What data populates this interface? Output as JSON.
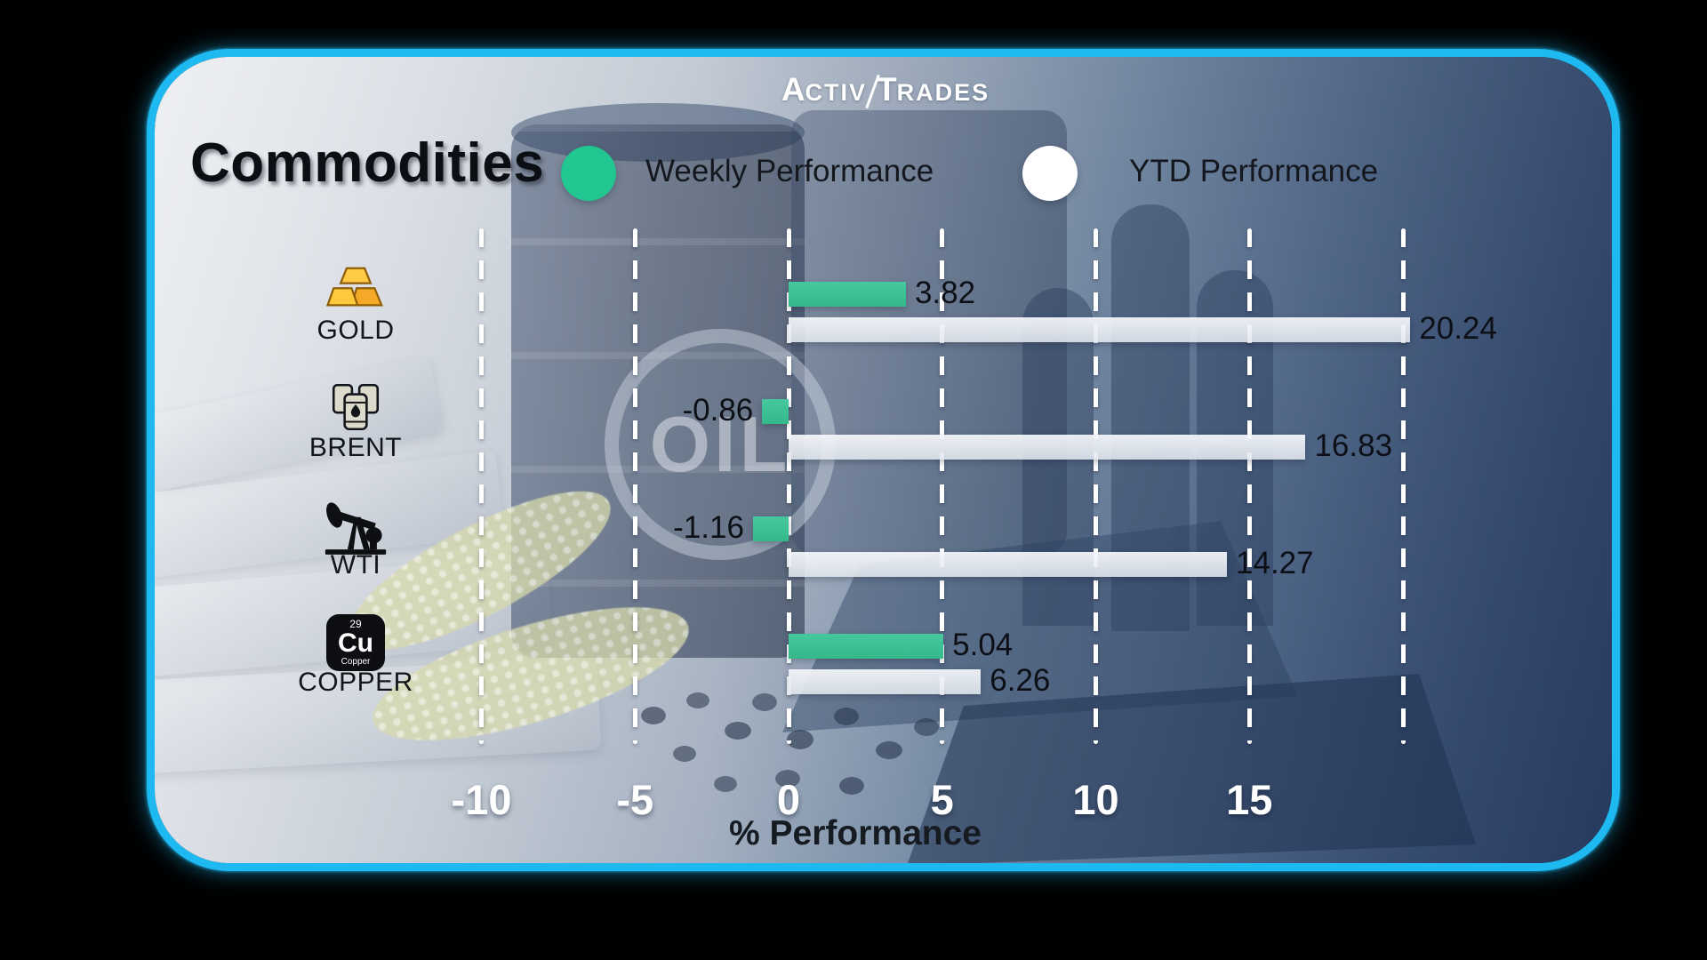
{
  "brand": {
    "left": "Activ",
    "right": "Trades"
  },
  "title": "Commodities",
  "legend": {
    "weekly": {
      "label": "Weekly Performance",
      "color": "#22C690"
    },
    "ytd": {
      "label": "YTD Performance",
      "color": "#FFFFFF"
    }
  },
  "watermark": "OIL",
  "axis": {
    "label": "% Performance"
  },
  "copper_icon": {
    "number": "29",
    "symbol": "Cu",
    "name": "Copper"
  },
  "chart_data": {
    "type": "bar",
    "orientation": "horizontal",
    "title": "Commodities",
    "xlabel": "% Performance",
    "categories": [
      "GOLD",
      "BRENT",
      "WTI",
      "COPPER"
    ],
    "icons": [
      "gold-bars-icon",
      "oil-barrels-icon",
      "oil-pump-icon",
      "copper-element-icon"
    ],
    "series": [
      {
        "name": "Weekly Performance",
        "color": "#3CBD94",
        "values": [
          3.82,
          -0.86,
          -1.16,
          5.04
        ]
      },
      {
        "name": "YTD Performance",
        "color": "#EBEFF4",
        "values": [
          20.24,
          16.83,
          14.27,
          6.26
        ]
      }
    ],
    "x_ticks": [
      -10,
      -5,
      0,
      5,
      10,
      15
    ],
    "grid_values": [
      -10,
      -5,
      0,
      5,
      10,
      15,
      20
    ],
    "xlim": [
      -12,
      22
    ],
    "grid": "dashed-white-vertical",
    "legend_position": "top"
  }
}
